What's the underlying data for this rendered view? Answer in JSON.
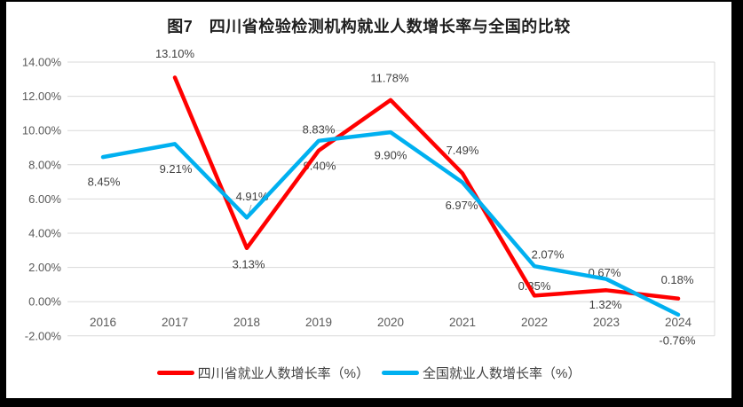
{
  "title": "图7　四川省检验检测机构就业人数增长率与全国的比较",
  "colors": {
    "sichuan": "#ff0000",
    "national": "#00b0f0",
    "grid": "#d9d9d9",
    "data_label": "#404040",
    "axis_text": "#595959",
    "leader": "#a6a6a6",
    "frame": "#000000",
    "background": "#ffffff"
  },
  "chart_data": {
    "type": "line",
    "title": "图7　四川省检验检测机构就业人数增长率与全国的比较",
    "categories": [
      "2016",
      "2017",
      "2018",
      "2019",
      "2020",
      "2021",
      "2022",
      "2023",
      "2024"
    ],
    "series": [
      {
        "name": "四川省就业人数增长率（%）",
        "color_key": "sichuan",
        "values": [
          null,
          13.1,
          3.13,
          8.83,
          11.78,
          7.49,
          0.35,
          0.67,
          0.18
        ],
        "labels": [
          "",
          "13.10%",
          "3.13%",
          "8.83%",
          "11.78%",
          "7.49%",
          "0.35%",
          "0.67%",
          "0.18%"
        ]
      },
      {
        "name": "全国就业人数增长率（%）",
        "color_key": "national",
        "values": [
          8.45,
          9.21,
          4.91,
          9.4,
          9.9,
          6.97,
          2.07,
          1.32,
          -0.76
        ],
        "labels": [
          "8.45%",
          "9.21%",
          "4.91%",
          "9.40%",
          "9.90%",
          "6.97%",
          "2.07%",
          "1.32%",
          "-0.76%"
        ]
      }
    ],
    "y_ticks": [
      "14.00%",
      "12.00%",
      "10.00%",
      "8.00%",
      "6.00%",
      "4.00%",
      "2.00%",
      "0.00%",
      "-2.00%"
    ],
    "ylim": [
      -2,
      14
    ],
    "y_step": 2,
    "grid": true,
    "legend_position": "bottom"
  },
  "legend": {
    "items": [
      {
        "label": "四川省就业人数增长率（%）"
      },
      {
        "label": "全国就业人数增长率（%）"
      }
    ]
  }
}
